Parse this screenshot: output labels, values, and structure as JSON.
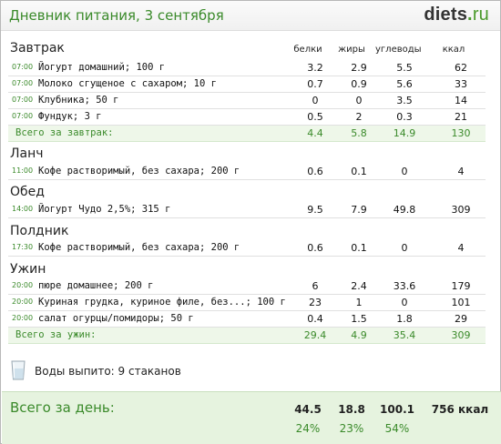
{
  "header": {
    "title": "Дневник питания, 3 сентября",
    "brand_main": "diets",
    "brand_dot": ".",
    "brand_tld": "ru"
  },
  "columns": {
    "protein": "белки",
    "fat": "жиры",
    "carbs": "углеводы",
    "kcal": "ккал"
  },
  "sections": [
    {
      "title": "Завтрак",
      "items": [
        {
          "time": "07:00",
          "name": "Йогурт домашний; 100 г",
          "protein": "3.2",
          "fat": "2.9",
          "carbs": "5.5",
          "kcal": "62"
        },
        {
          "time": "07:00",
          "name": "Молоко сгущеное с сахаром; 10 г",
          "protein": "0.7",
          "fat": "0.9",
          "carbs": "5.6",
          "kcal": "33"
        },
        {
          "time": "07:00",
          "name": "Клубника; 50 г",
          "protein": "0",
          "fat": "0",
          "carbs": "3.5",
          "kcal": "14"
        },
        {
          "time": "07:00",
          "name": "Фундук; 3 г",
          "protein": "0.5",
          "fat": "2",
          "carbs": "0.3",
          "kcal": "21"
        }
      ],
      "total": {
        "label": "Всего за завтрак:",
        "protein": "4.4",
        "fat": "5.8",
        "carbs": "14.9",
        "kcal": "130"
      }
    },
    {
      "title": "Ланч",
      "items": [
        {
          "time": "11:00",
          "name": "Кофе растворимый, без сахара; 200 г",
          "protein": "0.6",
          "fat": "0.1",
          "carbs": "0",
          "kcal": "4"
        }
      ]
    },
    {
      "title": "Обед",
      "items": [
        {
          "time": "14:00",
          "name": "Йогурт Чудо 2,5%; 315 г",
          "protein": "9.5",
          "fat": "7.9",
          "carbs": "49.8",
          "kcal": "309"
        }
      ]
    },
    {
      "title": "Полдник",
      "items": [
        {
          "time": "17:30",
          "name": "Кофе растворимый, без сахара; 200 г",
          "protein": "0.6",
          "fat": "0.1",
          "carbs": "0",
          "kcal": "4"
        }
      ]
    },
    {
      "title": "Ужин",
      "items": [
        {
          "time": "20:00",
          "name": "пюре домашнее; 200 г",
          "protein": "6",
          "fat": "2.4",
          "carbs": "33.6",
          "kcal": "179"
        },
        {
          "time": "20:00",
          "name": "Куриная грудка, куриное филе, без...; 100 г",
          "protein": "23",
          "fat": "1",
          "carbs": "0",
          "kcal": "101"
        },
        {
          "time": "20:00",
          "name": "салат огурцы/помидоры; 50 г",
          "protein": "0.4",
          "fat": "1.5",
          "carbs": "1.8",
          "kcal": "29"
        }
      ],
      "total": {
        "label": "Всего за ужин:",
        "protein": "29.4",
        "fat": "4.9",
        "carbs": "35.4",
        "kcal": "309"
      }
    }
  ],
  "water": {
    "icon": "glass-icon",
    "text": "Воды выпито: 9 стаканов"
  },
  "day_total": {
    "label": "Всего за день:",
    "protein": "44.5",
    "fat": "18.8",
    "carbs": "100.1",
    "kcal": "756 ккал",
    "protein_pct": "24%",
    "fat_pct": "23%",
    "carbs_pct": "54%"
  },
  "colors": {
    "accent": "#3a8a2a",
    "total_bg": "#eef7e9",
    "day_bg": "#e6f3df"
  }
}
